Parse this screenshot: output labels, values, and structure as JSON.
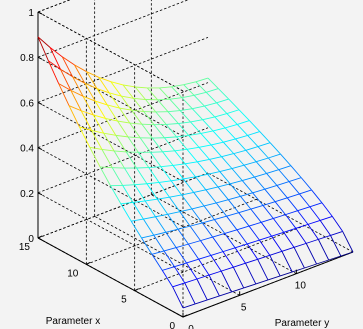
{
  "chart_data": {
    "type": "surface",
    "style": "mesh, jet colormap, 3-D view, dashed grid lines, boxed axes",
    "xlabel": "Parameter x",
    "ylabel": "Parameter y",
    "zlabel": "",
    "title": "",
    "xlim": [
      0,
      15
    ],
    "ylim": [
      0,
      15
    ],
    "zlim": [
      0,
      1
    ],
    "x_ticks": [
      "0",
      "5",
      "10",
      "15"
    ],
    "y_ticks": [
      "0",
      "5",
      "10"
    ],
    "z_ticks": [
      "0",
      "0.2",
      "0.4",
      "0.6",
      "0.8",
      "1"
    ],
    "x": [
      0,
      1.5,
      3,
      4.5,
      6,
      7.5,
      9,
      10.5,
      12,
      13.5,
      15
    ],
    "y": [
      0,
      1.5,
      3,
      4.5,
      6,
      7.5,
      9,
      10.5,
      12,
      13.5,
      15
    ],
    "z_surface": "z(x,y) = 0.42 * (x/15)^0.7 + 0.43 * (x/15)^2 * (1 - y/15)^2.2 + 0.04 * (1 - y/15), rising toward 0.89 at x=15, y=0 and falling to about 0 at x=0"
  }
}
